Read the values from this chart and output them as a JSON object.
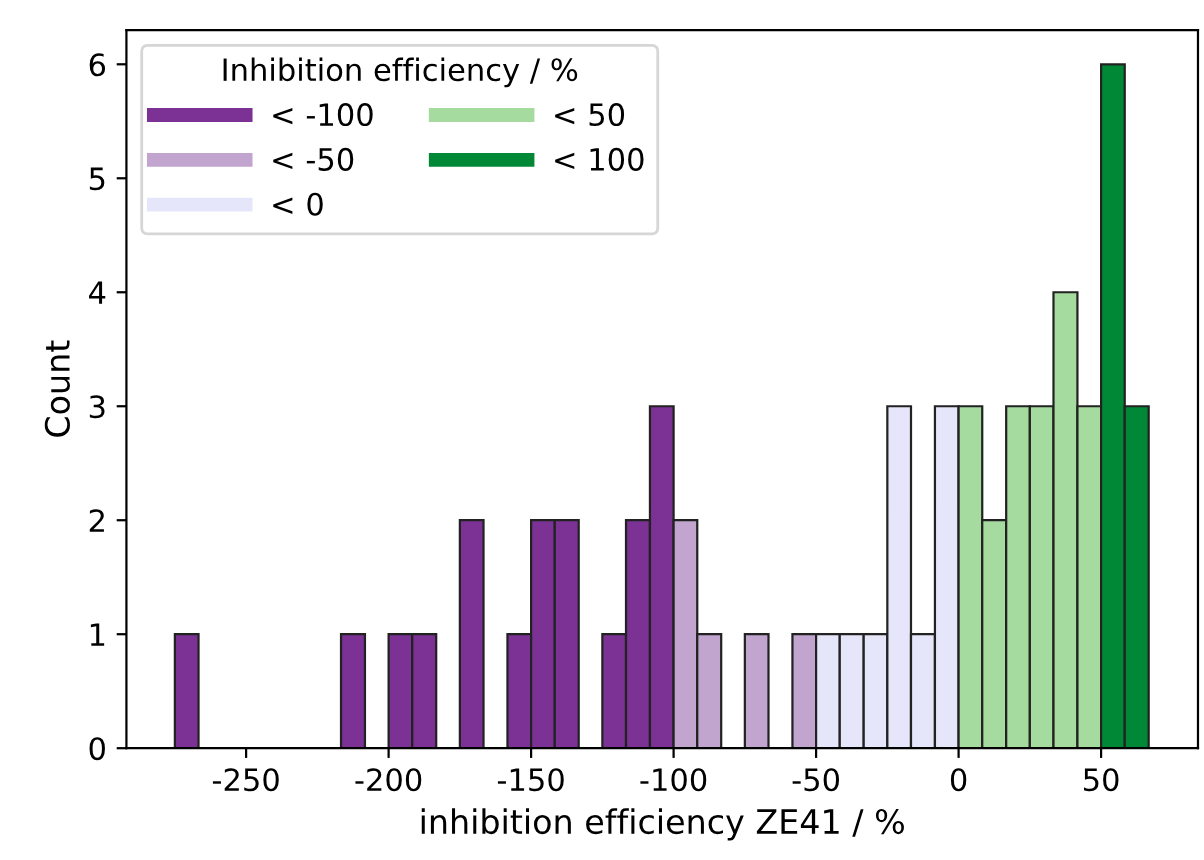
{
  "chart_data": {
    "type": "histogram",
    "xlabel": "inhibition efficiency ZE41 / %",
    "ylabel": "Count",
    "legend_title": "Inhibition efficiency / %",
    "bins": [
      -275.0,
      -266.7,
      -258.3,
      -250.0,
      -241.7,
      -233.3,
      -225.0,
      -216.7,
      -208.3,
      -200.0,
      -191.7,
      -183.3,
      -175.0,
      -166.7,
      -158.3,
      -150.0,
      -141.7,
      -133.3,
      -125.0,
      -116.7,
      -108.3,
      -100.0,
      -91.7,
      -83.3,
      -75.0,
      -66.7,
      -58.3,
      -50.0,
      -41.7,
      -33.3,
      -25.0,
      -16.7,
      -8.3,
      0.0,
      8.3,
      16.7,
      25.0,
      33.3,
      41.7,
      50.0,
      58.3,
      66.7
    ],
    "series": [
      {
        "name": "< -100",
        "color": "#7b3294",
        "values": [
          1,
          0,
          0,
          0,
          0,
          0,
          0,
          1,
          0,
          1,
          1,
          0,
          2,
          0,
          1,
          2,
          2,
          0,
          1,
          2,
          3,
          null,
          null,
          null,
          null,
          null,
          null,
          null,
          null,
          null,
          null,
          null,
          null,
          null,
          null,
          null,
          null,
          null,
          null,
          null,
          null
        ]
      },
      {
        "name": "< -50",
        "color": "#c2a5cf",
        "values": [
          null,
          null,
          null,
          null,
          null,
          null,
          null,
          null,
          null,
          null,
          null,
          null,
          null,
          null,
          null,
          null,
          null,
          null,
          null,
          null,
          null,
          2,
          1,
          0,
          1,
          0,
          1,
          null,
          null,
          null,
          null,
          null,
          null,
          null,
          null,
          null,
          null,
          null,
          null,
          null,
          null
        ]
      },
      {
        "name": "< 0",
        "color": "#e6e6fa",
        "values": [
          null,
          null,
          null,
          null,
          null,
          null,
          null,
          null,
          null,
          null,
          null,
          null,
          null,
          null,
          null,
          null,
          null,
          null,
          null,
          null,
          null,
          null,
          null,
          null,
          null,
          null,
          null,
          1,
          1,
          1,
          3,
          1,
          3,
          null,
          null,
          null,
          null,
          null,
          null,
          null,
          null
        ]
      },
      {
        "name": "< 50",
        "color": "#a6dba0",
        "values": [
          null,
          null,
          null,
          null,
          null,
          null,
          null,
          null,
          null,
          null,
          null,
          null,
          null,
          null,
          null,
          null,
          null,
          null,
          null,
          null,
          null,
          null,
          null,
          null,
          null,
          null,
          null,
          null,
          null,
          null,
          null,
          null,
          null,
          3,
          2,
          3,
          3,
          4,
          3,
          null,
          null
        ]
      },
      {
        "name": "< 100",
        "color": "#008837",
        "values": [
          null,
          null,
          null,
          null,
          null,
          null,
          null,
          null,
          null,
          null,
          null,
          null,
          null,
          null,
          null,
          null,
          null,
          null,
          null,
          null,
          null,
          null,
          null,
          null,
          null,
          null,
          null,
          null,
          null,
          null,
          null,
          null,
          null,
          null,
          null,
          null,
          null,
          null,
          null,
          6,
          3
        ]
      }
    ],
    "xlim": [
      -292,
      84
    ],
    "ylim": [
      0,
      6.3
    ],
    "xticks": [
      -250,
      -200,
      -150,
      -100,
      -50,
      0,
      50
    ],
    "yticks": [
      0,
      1,
      2,
      3,
      4,
      5,
      6
    ],
    "grid": false,
    "legend": "top left"
  }
}
